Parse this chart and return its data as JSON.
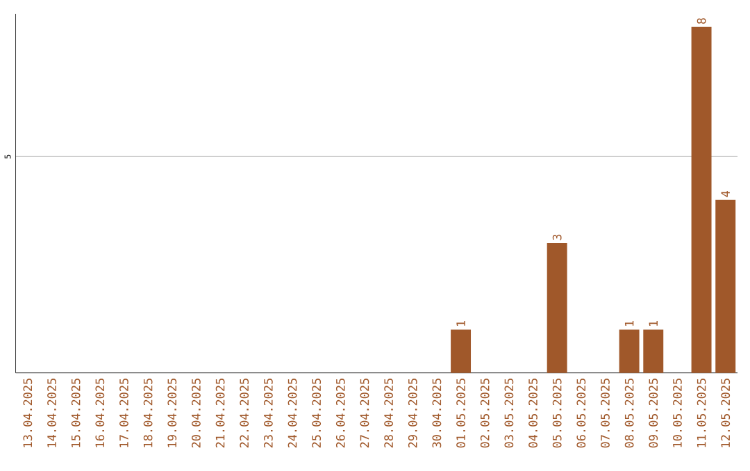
{
  "chart_data": {
    "type": "bar",
    "categories": [
      "13.04.2025",
      "14.04.2025",
      "15.04.2025",
      "16.04.2025",
      "17.04.2025",
      "18.04.2025",
      "19.04.2025",
      "20.04.2025",
      "21.04.2025",
      "22.04.2025",
      "23.04.2025",
      "24.04.2025",
      "25.04.2025",
      "26.04.2025",
      "27.04.2025",
      "28.04.2025",
      "29.04.2025",
      "30.04.2025",
      "01.05.2025",
      "02.05.2025",
      "03.05.2025",
      "04.05.2025",
      "05.05.2025",
      "06.05.2025",
      "07.05.2025",
      "08.05.2025",
      "09.05.2025",
      "10.05.2025",
      "11.05.2025",
      "12.05.2025"
    ],
    "values": [
      null,
      null,
      null,
      null,
      null,
      null,
      null,
      null,
      null,
      null,
      null,
      null,
      null,
      null,
      null,
      null,
      null,
      null,
      1,
      null,
      null,
      null,
      3,
      null,
      null,
      1,
      1,
      null,
      8,
      4
    ],
    "data_labels": true,
    "color": "#a0582a",
    "ylim": [
      0,
      8.3
    ],
    "yticks": [
      5
    ],
    "grid": "y"
  }
}
